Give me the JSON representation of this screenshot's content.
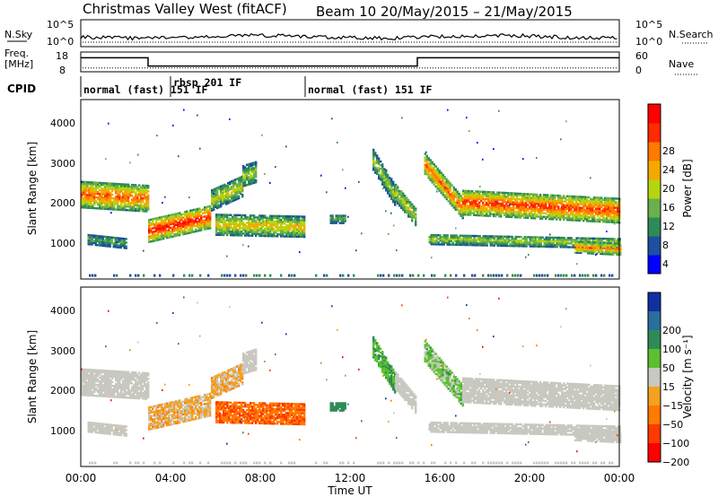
{
  "header": {
    "site": "Christmas Valley West (fitACF)",
    "beam": "Beam 10  20/May/2015 – 21/May/2015"
  },
  "noise_panel": {
    "left_label": "N.Sky",
    "right_label": "N.Search",
    "left_ticks": [
      "10^5",
      "10^0"
    ],
    "right_ticks": [
      "10^5",
      "10^0"
    ]
  },
  "freq_panel": {
    "left_label_1": "Freq.",
    "left_label_2": "[MHz]",
    "right_label": "Nave",
    "left_ticks": [
      "18",
      "8"
    ],
    "right_ticks": [
      "60",
      "0"
    ],
    "freq_steps": [
      [
        0,
        15.8
      ],
      [
        3.0,
        11.2
      ],
      [
        15.0,
        15.8
      ],
      [
        24,
        15.8
      ]
    ],
    "nave_level": 13
  },
  "cpid": {
    "label": "CPID",
    "segments": [
      {
        "start": 0,
        "text": "normal (fast) 151 IF"
      },
      {
        "start": 3.0,
        "text": "rbsp 201 IF"
      },
      {
        "start": 10.0,
        "text": "normal (fast) 151 IF"
      }
    ]
  },
  "power_panel": {
    "ylabel": "Slant Range [km]",
    "yticks": [
      "1000",
      "2000",
      "3000",
      "4000"
    ],
    "colorbar_label": "Power [dB]",
    "colorbar_ticks": [
      "4",
      "8",
      "12",
      "16",
      "20",
      "24",
      "28"
    ],
    "colors": [
      "#0000ff",
      "#1e4fa0",
      "#2e8b57",
      "#6ab04c",
      "#b5d60f",
      "#f5a900",
      "#ff7a00",
      "#ff2a00",
      "#ff0000"
    ]
  },
  "velocity_panel": {
    "ylabel": "Slant Range [km]",
    "yticks": [
      "1000",
      "2000",
      "3000",
      "4000"
    ],
    "colorbar_label": "Velocity [m s⁻¹]",
    "colorbar_ticks": [
      "200",
      "100",
      "50",
      "15",
      "−15",
      "−50",
      "−100",
      "−200"
    ],
    "colors": [
      "#1030a0",
      "#2a6e9e",
      "#2e8b57",
      "#5cc030",
      "#c8c8c0",
      "#f5a020",
      "#ff7a00",
      "#ff3a00",
      "#ff0000"
    ]
  },
  "xaxis": {
    "label": "Time UT",
    "ticks": [
      "00:00",
      "04:00",
      "08:00",
      "12:00",
      "16:00",
      "20:00",
      "00:00"
    ]
  },
  "chart_data": {
    "type": "heatmap",
    "x_range_hours": [
      0,
      24
    ],
    "y_range_km": [
      180,
      4600
    ],
    "bands": [
      {
        "t0": 0.0,
        "t1": 3.0,
        "r_center": [
          2250,
          2150
        ],
        "width": 650,
        "power": 24,
        "velocity": 0
      },
      {
        "t0": 0.3,
        "t1": 2.0,
        "r_center": [
          1150,
          1050
        ],
        "width": 260,
        "power": 10,
        "velocity": 0
      },
      {
        "t0": 3.0,
        "t1": 5.8,
        "r_center": [
          1350,
          1700
        ],
        "width": 550,
        "power": 28,
        "velocity": -20
      },
      {
        "t0": 5.8,
        "t1": 7.2,
        "r_center": [
          2100,
          2450
        ],
        "width": 500,
        "power": 16,
        "velocity": -20
      },
      {
        "t0": 6.0,
        "t1": 10.0,
        "r_center": [
          1500,
          1450
        ],
        "width": 500,
        "power": 18,
        "velocity": -70
      },
      {
        "t0": 7.2,
        "t1": 7.8,
        "r_center": [
          2700,
          2800
        ],
        "width": 500,
        "power": 14,
        "velocity": 0
      },
      {
        "t0": 11.1,
        "t1": 11.8,
        "r_center": [
          1650,
          1650
        ],
        "width": 220,
        "power": 10,
        "velocity": 60
      },
      {
        "t0": 13.0,
        "t1": 14.0,
        "r_center": [
          3100,
          2200
        ],
        "width": 500,
        "power": 14,
        "velocity": 30
      },
      {
        "t0": 14.0,
        "t1": 14.9,
        "r_center": [
          2300,
          1700
        ],
        "width": 450,
        "power": 16,
        "velocity": 0
      },
      {
        "t0": 15.3,
        "t1": 17.0,
        "r_center": [
          3000,
          1900
        ],
        "width": 500,
        "power": 24,
        "velocity": 20
      },
      {
        "t0": 17.0,
        "t1": 24.0,
        "r_center": [
          2050,
          1850
        ],
        "width": 600,
        "power": 26,
        "velocity": 0
      },
      {
        "t0": 15.5,
        "t1": 24.0,
        "r_center": [
          1150,
          1050
        ],
        "width": 260,
        "power": 14,
        "velocity": 0
      },
      {
        "t0": 22.0,
        "t1": 24.0,
        "r_center": [
          950,
          900
        ],
        "width": 280,
        "power": 22,
        "velocity": 0
      }
    ]
  }
}
